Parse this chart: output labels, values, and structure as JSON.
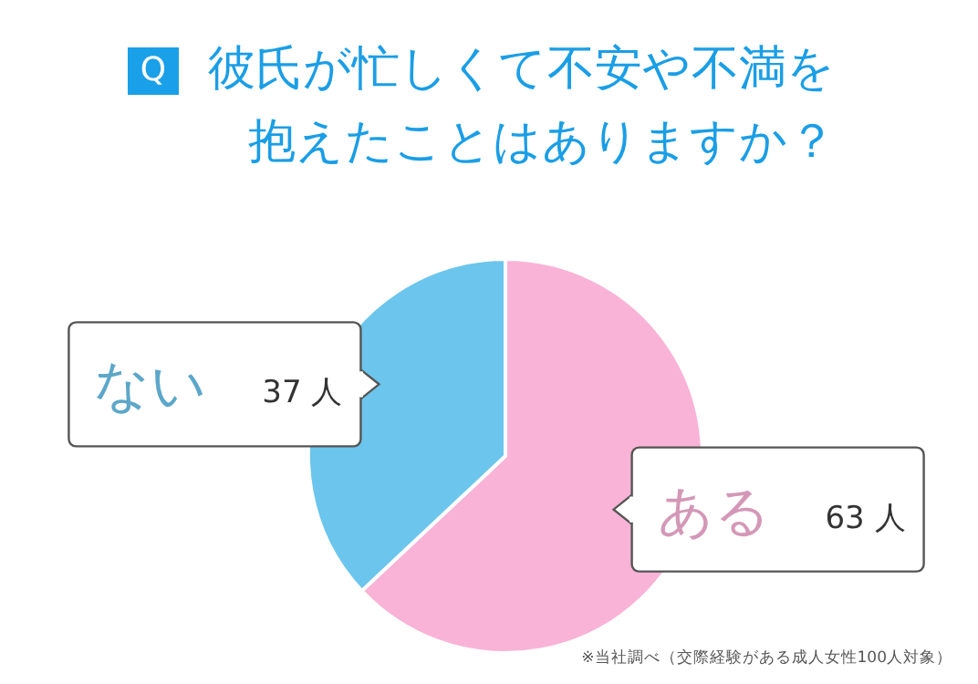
{
  "chart_data": {
    "type": "pie",
    "title": "彼氏が忙しくて不安や不満を抱えたことはありますか？",
    "categories": [
      "ある",
      "ない"
    ],
    "values": [
      63,
      37
    ],
    "colors": [
      "#f9b3d7",
      "#6cc5ec"
    ],
    "value_labels": [
      "63 人",
      "37 人"
    ],
    "annotations": [
      "Q",
      "※当社調べ（交際経験がある成人女性100人対象）"
    ]
  }
}
